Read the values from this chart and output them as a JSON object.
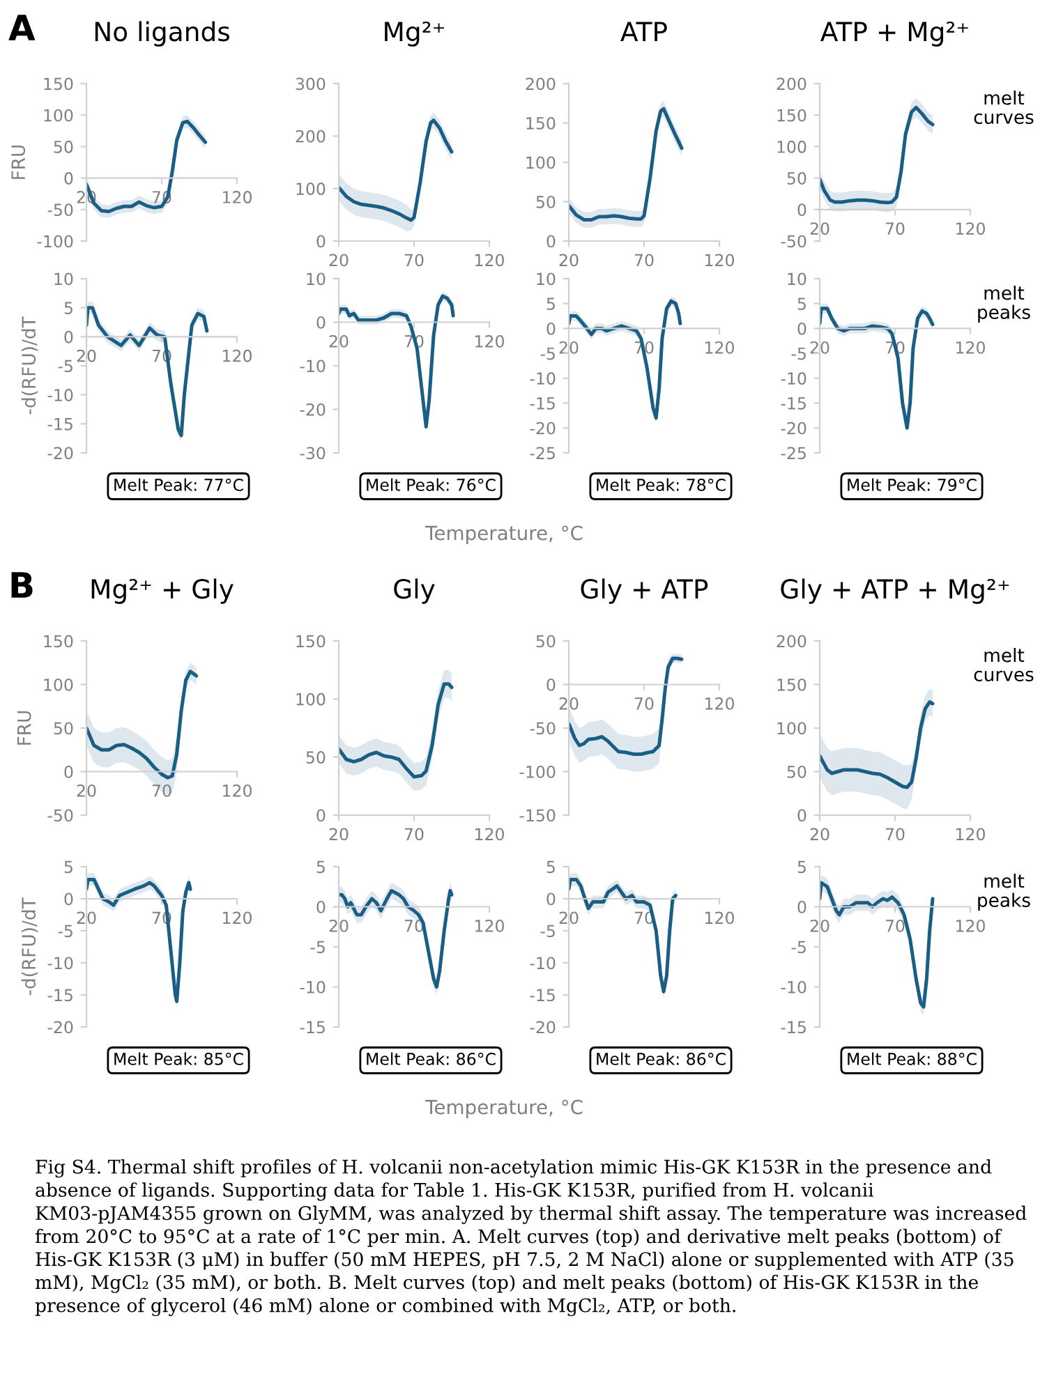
{
  "chart_data": [
    {
      "type": "line",
      "title": "No ligands",
      "ylabel": "FRU",
      "annotations": [
        "A"
      ],
      "xlim": [
        20,
        120
      ],
      "xticks": [
        20,
        70,
        120
      ],
      "ylim": [
        -100,
        150
      ],
      "yticks": [
        -100,
        -50,
        0,
        50,
        100,
        150
      ],
      "series": [
        {
          "color": "#1a5e85",
          "x": [
            20,
            25,
            30,
            35,
            40,
            45,
            50,
            55,
            60,
            65,
            70,
            74,
            77,
            80,
            84,
            87,
            91,
            95,
            99
          ],
          "values": [
            -10,
            -40,
            -52,
            -53,
            -48,
            -45,
            -45,
            -38,
            -44,
            -47,
            -45,
            -30,
            10,
            60,
            88,
            90,
            80,
            68,
            57
          ],
          "lower": [
            -20,
            -50,
            -62,
            -63,
            -58,
            -55,
            -55,
            -48,
            -54,
            -57,
            -55,
            -40,
            0,
            50,
            78,
            80,
            70,
            58,
            47
          ],
          "upper": [
            0,
            -30,
            -42,
            -43,
            -38,
            -35,
            -35,
            -28,
            -34,
            -37,
            -35,
            -20,
            20,
            70,
            98,
            100,
            90,
            78,
            67
          ]
        }
      ]
    },
    {
      "type": "line",
      "title": "Mg²⁺",
      "xlim": [
        20,
        120
      ],
      "xticks": [
        20,
        70,
        120
      ],
      "ylim": [
        0,
        300
      ],
      "yticks": [
        0,
        100,
        200,
        300
      ],
      "series": [
        {
          "color": "#1a5e85",
          "x": [
            20,
            25,
            30,
            35,
            40,
            45,
            50,
            55,
            60,
            65,
            68,
            70,
            74,
            78,
            81,
            83,
            87,
            91,
            95
          ],
          "values": [
            102,
            85,
            75,
            70,
            68,
            66,
            63,
            58,
            52,
            44,
            40,
            45,
            110,
            190,
            225,
            230,
            215,
            190,
            170
          ],
          "lower": [
            77,
            60,
            50,
            45,
            43,
            41,
            38,
            33,
            27,
            19,
            20,
            30,
            95,
            175,
            210,
            215,
            200,
            175,
            155
          ],
          "upper": [
            127,
            110,
            100,
            95,
            93,
            91,
            88,
            83,
            77,
            69,
            60,
            60,
            125,
            205,
            240,
            245,
            230,
            205,
            185
          ]
        }
      ]
    },
    {
      "type": "line",
      "title": "ATP",
      "xlim": [
        20,
        120
      ],
      "xticks": [
        20,
        70,
        120
      ],
      "ylim": [
        0,
        200
      ],
      "yticks": [
        0,
        50,
        100,
        150,
        200
      ],
      "series": [
        {
          "color": "#1a5e85",
          "x": [
            20,
            25,
            30,
            35,
            40,
            45,
            50,
            55,
            60,
            65,
            68,
            70,
            74,
            78,
            81,
            83,
            86,
            90,
            95
          ],
          "values": [
            45,
            33,
            27,
            27,
            31,
            31,
            32,
            31,
            29,
            28,
            28,
            32,
            80,
            140,
            165,
            168,
            155,
            138,
            118
          ],
          "lower": [
            35,
            23,
            17,
            17,
            21,
            21,
            22,
            21,
            19,
            18,
            18,
            22,
            70,
            130,
            155,
            158,
            145,
            128,
            108
          ],
          "upper": [
            55,
            43,
            37,
            37,
            41,
            41,
            42,
            41,
            39,
            38,
            38,
            42,
            90,
            150,
            175,
            178,
            165,
            148,
            128
          ]
        }
      ]
    },
    {
      "type": "line",
      "title": "ATP + Mg²⁺",
      "annotations": [
        "melt\ncurves"
      ],
      "xlim": [
        20,
        120
      ],
      "xticks": [
        20,
        70,
        120
      ],
      "ylim": [
        -50,
        200
      ],
      "yticks": [
        -50,
        0,
        50,
        100,
        150,
        200
      ],
      "series": [
        {
          "color": "#1a5e85",
          "x": [
            20,
            23,
            27,
            30,
            35,
            40,
            45,
            50,
            55,
            60,
            65,
            68,
            71,
            74,
            77,
            81,
            84,
            88,
            92,
            95
          ],
          "values": [
            48,
            30,
            15,
            12,
            12,
            14,
            15,
            15,
            14,
            12,
            11,
            12,
            20,
            60,
            120,
            155,
            162,
            152,
            140,
            135
          ],
          "lower": [
            33,
            15,
            0,
            -3,
            -3,
            -1,
            0,
            0,
            -1,
            -3,
            -4,
            -3,
            5,
            45,
            105,
            140,
            147,
            137,
            125,
            120
          ],
          "upper": [
            63,
            45,
            30,
            27,
            27,
            29,
            30,
            30,
            29,
            27,
            26,
            27,
            35,
            75,
            135,
            170,
            177,
            167,
            155,
            150
          ]
        }
      ]
    },
    {
      "type": "line",
      "ylabel": "-d(RFU)/dT",
      "annotations": [
        "Melt Peak: 77°C"
      ],
      "xlim": [
        20,
        120
      ],
      "xticks": [
        20,
        70,
        120
      ],
      "ylim": [
        -20,
        10
      ],
      "yticks": [
        -20,
        -15,
        -10,
        -5,
        0,
        5,
        10
      ],
      "series": [
        {
          "color": "#1a5e85",
          "x": [
            20,
            21,
            24,
            28,
            34,
            43,
            49,
            55,
            62,
            67,
            72,
            76,
            81,
            83,
            85,
            90,
            94,
            98,
            100
          ],
          "values": [
            2,
            5,
            5,
            2,
            0,
            -1.5,
            0.3,
            -1.5,
            1.5,
            0.3,
            0,
            -8,
            -16,
            -17,
            -10,
            2,
            4,
            3.5,
            1
          ],
          "lower": [
            1,
            4,
            4,
            1,
            -1,
            -2.5,
            -0.7,
            -2.5,
            0.5,
            -0.7,
            -1,
            -9,
            -17,
            -18,
            -11,
            1,
            3,
            2.5,
            0
          ],
          "upper": [
            3,
            6,
            6,
            3,
            1,
            -0.5,
            1.3,
            -0.5,
            2.5,
            1.3,
            1,
            -7,
            -15,
            -16,
            -9,
            3,
            5,
            4.5,
            2
          ]
        }
      ]
    },
    {
      "type": "line",
      "xlabel": "Temperature, °C",
      "annotations": [
        "Melt Peak: 76°C"
      ],
      "xlim": [
        20,
        120
      ],
      "xticks": [
        20,
        70,
        120
      ],
      "ylim": [
        -30,
        10
      ],
      "yticks": [
        -30,
        -20,
        -10,
        0,
        10
      ],
      "series": [
        {
          "color": "#1a5e85",
          "x": [
            20,
            21,
            25,
            27,
            30,
            33,
            40,
            45,
            50,
            55,
            60,
            65,
            68,
            72,
            76,
            78,
            80,
            83,
            86,
            89,
            92,
            95,
            96
          ],
          "values": [
            2,
            3,
            3,
            1.5,
            2,
            0.5,
            0.5,
            0.5,
            1,
            2,
            2,
            1.5,
            -1,
            -6,
            -18,
            -24,
            -18,
            -3,
            4,
            6,
            5.5,
            4,
            1.5
          ],
          "lower": [
            1,
            2,
            2,
            0.5,
            1,
            -0.5,
            -0.5,
            -0.5,
            0,
            1,
            1,
            0.5,
            -2,
            -7,
            -19,
            -25,
            -19,
            -4,
            3,
            5,
            4.5,
            3,
            0.5
          ],
          "upper": [
            3,
            4,
            4,
            2.5,
            3,
            1.5,
            1.5,
            1.5,
            2,
            3,
            3,
            2.5,
            0,
            -5,
            -17,
            -23,
            -17,
            -2,
            5,
            7,
            6.5,
            5,
            2.5
          ]
        }
      ]
    },
    {
      "type": "line",
      "annotations": [
        "Melt Peak: 78°C"
      ],
      "xlim": [
        20,
        120
      ],
      "xticks": [
        20,
        70,
        120
      ],
      "ylim": [
        -25,
        10
      ],
      "yticks": [
        -25,
        -20,
        -15,
        -10,
        -5,
        0,
        5,
        10
      ],
      "series": [
        {
          "color": "#1a5e85",
          "x": [
            20,
            21,
            25,
            28,
            32,
            35,
            38,
            42,
            45,
            50,
            55,
            60,
            65,
            68,
            72,
            76,
            78,
            80,
            82,
            85,
            88,
            91,
            93,
            94
          ],
          "values": [
            1,
            2.5,
            2.5,
            1.5,
            0,
            -1.2,
            0,
            0,
            -0.5,
            0,
            0.5,
            0,
            -0.5,
            -2,
            -8,
            -16,
            -18,
            -12,
            -2,
            4,
            5.5,
            5,
            3,
            1
          ],
          "lower": [
            0,
            1.5,
            1.5,
            0.5,
            -1,
            -2.2,
            -1,
            -1,
            -1.5,
            -1,
            -0.5,
            -1,
            -1.5,
            -3,
            -9,
            -17,
            -19,
            -13,
            -3,
            3,
            4.5,
            4,
            2,
            0
          ],
          "upper": [
            2,
            3.5,
            3.5,
            2.5,
            1,
            -0.2,
            1,
            1,
            0.5,
            1,
            1.5,
            1,
            0.5,
            -1,
            -7,
            -15,
            -17,
            -11,
            -1,
            5,
            6.5,
            6,
            4,
            2
          ]
        }
      ]
    },
    {
      "type": "line",
      "annotations": [
        "Melt Peak: 79°C",
        "melt\npeaks"
      ],
      "xlim": [
        20,
        120
      ],
      "xticks": [
        20,
        70,
        120
      ],
      "ylim": [
        -25,
        10
      ],
      "yticks": [
        -25,
        -20,
        -15,
        -10,
        -5,
        0,
        5,
        10
      ],
      "series": [
        {
          "color": "#1a5e85",
          "x": [
            20,
            21,
            25,
            28,
            32,
            36,
            40,
            45,
            50,
            55,
            60,
            65,
            68,
            72,
            75,
            78,
            80,
            82,
            85,
            88,
            91,
            93,
            95
          ],
          "values": [
            1,
            4,
            4,
            2,
            0,
            -0.5,
            0,
            0,
            0,
            0.5,
            0.3,
            0,
            -1,
            -6,
            -15,
            -20,
            -15,
            -4,
            2,
            3.5,
            3,
            2,
            0.8
          ],
          "lower": [
            0,
            3,
            3,
            1,
            -1,
            -1.5,
            -1,
            -1,
            -1,
            -0.5,
            -0.7,
            -1,
            -2,
            -7,
            -16,
            -21,
            -16,
            -5,
            1,
            2.5,
            2,
            1,
            -0.2
          ],
          "upper": [
            2,
            5,
            5,
            3,
            1,
            0.5,
            1,
            1,
            1,
            1.5,
            1.3,
            1,
            0,
            -5,
            -14,
            -19,
            -14,
            -3,
            3,
            4.5,
            4,
            3,
            1.8
          ]
        }
      ]
    },
    {
      "type": "line",
      "title": "Mg²⁺ + Gly",
      "ylabel": "FRU",
      "annotations": [
        "B"
      ],
      "xlim": [
        20,
        120
      ],
      "xticks": [
        20,
        70,
        120
      ],
      "ylim": [
        -50,
        150
      ],
      "yticks": [
        -50,
        0,
        50,
        100,
        150
      ],
      "series": [
        {
          "color": "#1a5e85",
          "x": [
            20,
            25,
            30,
            35,
            40,
            45,
            50,
            55,
            60,
            65,
            70,
            74,
            77,
            80,
            83,
            86,
            89,
            93
          ],
          "values": [
            50,
            30,
            25,
            25,
            30,
            31,
            27,
            22,
            15,
            5,
            -3,
            -7,
            -5,
            20,
            70,
            105,
            115,
            110
          ],
          "lower": [
            30,
            10,
            5,
            5,
            10,
            11,
            7,
            2,
            -5,
            -15,
            -23,
            -27,
            -25,
            0,
            55,
            95,
            105,
            100
          ],
          "upper": [
            70,
            50,
            45,
            45,
            50,
            51,
            47,
            42,
            35,
            25,
            17,
            13,
            15,
            40,
            85,
            115,
            125,
            120
          ]
        }
      ]
    },
    {
      "type": "line",
      "title": "Gly",
      "xlim": [
        20,
        120
      ],
      "xticks": [
        20,
        70,
        120
      ],
      "ylim": [
        0,
        150
      ],
      "yticks": [
        0,
        50,
        100,
        150
      ],
      "series": [
        {
          "color": "#1a5e85",
          "x": [
            20,
            25,
            30,
            35,
            40,
            45,
            50,
            55,
            60,
            65,
            70,
            75,
            78,
            82,
            86,
            90,
            93,
            95
          ],
          "values": [
            57,
            48,
            46,
            48,
            52,
            54,
            51,
            50,
            48,
            40,
            33,
            34,
            38,
            60,
            95,
            113,
            113,
            110
          ],
          "lower": [
            45,
            36,
            34,
            36,
            40,
            42,
            39,
            38,
            36,
            28,
            21,
            22,
            26,
            48,
            83,
            101,
            101,
            98
          ],
          "upper": [
            69,
            60,
            58,
            60,
            64,
            66,
            63,
            62,
            60,
            52,
            45,
            46,
            50,
            72,
            107,
            125,
            125,
            122
          ]
        }
      ]
    },
    {
      "type": "line",
      "title": "Gly + ATP",
      "xlim": [
        20,
        120
      ],
      "xticks": [
        20,
        70,
        120
      ],
      "ylim": [
        -150,
        50
      ],
      "yticks": [
        -150,
        -100,
        -50,
        0,
        50
      ],
      "series": [
        {
          "color": "#1a5e85",
          "x": [
            20,
            24,
            27,
            30,
            33,
            38,
            42,
            46,
            50,
            53,
            58,
            63,
            68,
            73,
            76,
            80,
            82,
            84,
            86,
            89,
            92,
            95
          ],
          "values": [
            -45,
            -62,
            -70,
            -68,
            -63,
            -62,
            -60,
            -65,
            -72,
            -77,
            -78,
            -80,
            -80,
            -78,
            -77,
            -70,
            -40,
            -5,
            20,
            30,
            30,
            29
          ],
          "lower": [
            -65,
            -82,
            -90,
            -88,
            -83,
            -82,
            -80,
            -85,
            -92,
            -97,
            -98,
            -100,
            -100,
            -98,
            -97,
            -90,
            -55,
            -15,
            10,
            25,
            25,
            24
          ],
          "upper": [
            -25,
            -42,
            -50,
            -48,
            -43,
            -42,
            -40,
            -45,
            -52,
            -57,
            -58,
            -60,
            -60,
            -58,
            -57,
            -50,
            -25,
            5,
            30,
            35,
            35,
            34
          ]
        }
      ]
    },
    {
      "type": "line",
      "title": "Gly + ATP + Mg²⁺",
      "annotations": [
        "melt\ncurves"
      ],
      "xlim": [
        20,
        120
      ],
      "xticks": [
        20,
        70,
        120
      ],
      "ylim": [
        0,
        200
      ],
      "yticks": [
        0,
        50,
        100,
        150,
        200
      ],
      "series": [
        {
          "color": "#1a5e85",
          "x": [
            20,
            25,
            28,
            32,
            36,
            45,
            50,
            55,
            60,
            65,
            70,
            75,
            78,
            81,
            84,
            87,
            90,
            93,
            95
          ],
          "values": [
            68,
            52,
            48,
            50,
            52,
            52,
            50,
            48,
            47,
            43,
            38,
            33,
            32,
            38,
            65,
            100,
            122,
            130,
            128
          ],
          "lower": [
            43,
            27,
            23,
            25,
            27,
            27,
            25,
            23,
            22,
            18,
            13,
            8,
            7,
            18,
            50,
            85,
            107,
            115,
            113
          ],
          "upper": [
            93,
            77,
            73,
            75,
            77,
            77,
            75,
            73,
            72,
            68,
            63,
            58,
            57,
            58,
            80,
            115,
            137,
            145,
            143
          ]
        }
      ]
    },
    {
      "type": "line",
      "ylabel": "-d(RFU)/dT",
      "annotations": [
        "Melt Peak: 85°C"
      ],
      "xlim": [
        20,
        120
      ],
      "xticks": [
        20,
        70,
        120
      ],
      "ylim": [
        -20,
        5
      ],
      "yticks": [
        -20,
        -15,
        -10,
        -5,
        0,
        5
      ],
      "series": [
        {
          "color": "#1a5e85",
          "x": [
            20,
            21,
            25,
            28,
            31,
            35,
            38,
            42,
            47,
            52,
            58,
            62,
            65,
            70,
            73,
            76,
            79,
            80,
            82,
            84,
            86,
            88,
            89
          ],
          "values": [
            1.5,
            3,
            3,
            1.5,
            0,
            -0.5,
            -1,
            0.5,
            1,
            1.5,
            2,
            2.5,
            2,
            0.5,
            -1,
            -8,
            -15,
            -16,
            -10,
            -2,
            1,
            2.5,
            1.5
          ],
          "lower": [
            0.5,
            2,
            2,
            0.5,
            -1,
            -1.5,
            -2,
            -0.5,
            0,
            0.5,
            1,
            1.5,
            1,
            -0.5,
            -2,
            -9,
            -16,
            -17,
            -11,
            -3,
            0,
            1.5,
            0.5
          ],
          "upper": [
            2.5,
            4,
            4,
            2.5,
            1,
            0.5,
            0,
            1.5,
            2,
            2.5,
            3,
            3.5,
            3,
            1.5,
            0,
            -7,
            -14,
            -15,
            -9,
            -1,
            2,
            3.5,
            2.5
          ]
        }
      ]
    },
    {
      "type": "line",
      "xlabel": "Temperature, °C",
      "annotations": [
        "Melt Peak: 86°C"
      ],
      "xlim": [
        20,
        120
      ],
      "xticks": [
        20,
        70,
        120
      ],
      "ylim": [
        -15,
        5
      ],
      "yticks": [
        -15,
        -10,
        -5,
        0,
        5
      ],
      "series": [
        {
          "color": "#1a5e85",
          "x": [
            20,
            22,
            24,
            26,
            28,
            32,
            35,
            38,
            42,
            45,
            48,
            52,
            55,
            60,
            63,
            66,
            70,
            73,
            76,
            80,
            83,
            85,
            87,
            90,
            93,
            94,
            95
          ],
          "values": [
            1.5,
            1.5,
            1,
            0,
            0.5,
            -1,
            -1,
            0,
            1,
            0.5,
            -0.5,
            1,
            2,
            1.5,
            1,
            0,
            -0.5,
            -1,
            -2,
            -6,
            -9,
            -10,
            -8,
            -3,
            1,
            2,
            1.5
          ],
          "lower": [
            0.5,
            0.5,
            0,
            -1,
            -0.5,
            -2,
            -2,
            -1,
            0,
            -0.5,
            -1.5,
            0,
            1,
            0.5,
            0,
            -1,
            -1.5,
            -2,
            -3,
            -7,
            -10,
            -11,
            -9,
            -4,
            0,
            1,
            0.5
          ],
          "upper": [
            2.5,
            2.5,
            2,
            1,
            1.5,
            0,
            0,
            1,
            2,
            1.5,
            0.5,
            2,
            3,
            2.5,
            2,
            1,
            0.5,
            0,
            -1,
            -5,
            -8,
            -9,
            -7,
            -2,
            2,
            3,
            2.5
          ]
        }
      ]
    },
    {
      "type": "line",
      "annotations": [
        "Melt Peak: 86°C"
      ],
      "xlim": [
        20,
        120
      ],
      "xticks": [
        20,
        70,
        120
      ],
      "ylim": [
        -20,
        5
      ],
      "yticks": [
        -20,
        -15,
        -10,
        -5,
        0,
        5
      ],
      "series": [
        {
          "color": "#1a5e85",
          "x": [
            20,
            21,
            25,
            28,
            30,
            33,
            36,
            40,
            43,
            46,
            49,
            52,
            55,
            58,
            62,
            65,
            70,
            74,
            78,
            81,
            83,
            85,
            87,
            89,
            91
          ],
          "values": [
            1.5,
            3,
            3,
            2,
            0.5,
            -1.5,
            -0.5,
            -0.5,
            -0.5,
            1,
            1.5,
            2,
            1,
            0,
            0.5,
            -0.5,
            -0.5,
            -1,
            -5,
            -12,
            -14.5,
            -12,
            -5,
            0,
            0.5
          ],
          "lower": [
            0.5,
            2,
            2,
            1,
            -0.5,
            -2.5,
            -1.5,
            -1.5,
            -1.5,
            0,
            0.5,
            1,
            0,
            -1,
            -0.5,
            -1.5,
            -1.5,
            -2,
            -6,
            -13,
            -15.5,
            -13,
            -6,
            -1,
            -0.5
          ],
          "upper": [
            2.5,
            4,
            4,
            3,
            1.5,
            -0.5,
            0.5,
            0.5,
            0.5,
            2,
            2.5,
            3,
            2,
            1,
            1.5,
            0.5,
            0.5,
            0,
            -4,
            -11,
            -13.5,
            -11,
            -4,
            1,
            1.5
          ]
        }
      ]
    },
    {
      "type": "line",
      "annotations": [
        "Melt Peak: 88°C",
        "melt\npeaks",
        "Fig S4. Thermal shift profiles of H. volcanii non-acetylation mimic His-GK K153R in the presence and absence of ligands. Supporting data for Table 1. His-GK K153R, purified from H. volcanii KM03-pJAM4355 grown on GlyMM, was analyzed by thermal shift assay. The temperature was increased from 20°C to 95°C at a rate of 1°C per min. A. Melt curves (top) and derivative melt peaks (bottom) of His-GK K153R (3 μM) in buffer (50 mM HEPES, pH 7.5, 2 M NaCl) alone or supplemented with ATP (35 mM), MgCl₂ (35 mM), or both. B. Melt curves (top) and melt peaks (bottom) of His-GK K153R in the presence of glycerol (46 mM) alone or combined with MgCl₂, ATP, or both."
      ],
      "xlim": [
        20,
        120
      ],
      "xticks": [
        20,
        70,
        120
      ],
      "ylim": [
        -15,
        5
      ],
      "yticks": [
        -15,
        -10,
        -5,
        0,
        5
      ],
      "series": [
        {
          "color": "#1a5e85",
          "x": [
            20,
            21,
            25,
            28,
            31,
            33,
            36,
            40,
            44,
            48,
            52,
            55,
            58,
            62,
            65,
            68,
            72,
            76,
            80,
            84,
            87,
            89,
            91,
            93,
            95
          ],
          "values": [
            1,
            3,
            2.5,
            1,
            -0.5,
            -1,
            0,
            0,
            0.5,
            0.5,
            0.5,
            0,
            0.5,
            1,
            0.8,
            1.2,
            0.5,
            -1,
            -4,
            -9,
            -12,
            -12.5,
            -9,
            -3,
            1
          ],
          "lower": [
            0,
            2,
            1.5,
            0,
            -1.5,
            -2,
            -1,
            -1,
            -0.5,
            -0.5,
            -0.5,
            -1,
            -0.5,
            0,
            -0.2,
            0.2,
            -0.5,
            -2,
            -5,
            -10,
            -13,
            -13.5,
            -10,
            -4,
            0
          ],
          "upper": [
            2,
            4,
            3.5,
            2,
            0.5,
            0,
            1,
            1,
            1.5,
            1.5,
            1.5,
            1,
            1.5,
            2,
            1.8,
            2.2,
            1.5,
            0,
            -3,
            -8,
            -11,
            -11.5,
            -8,
            -2,
            2
          ]
        }
      ]
    }
  ]
}
